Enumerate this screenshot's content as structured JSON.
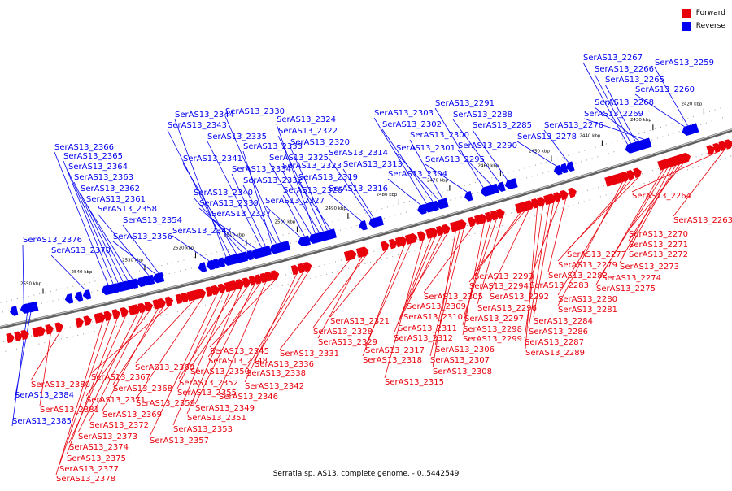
{
  "legend": {
    "forward_label": "Forward",
    "reverse_label": "Reverse"
  },
  "colors": {
    "forward": "#e8000b",
    "reverse": "#0000f0",
    "backbone": "#606060"
  },
  "caption": "Serratia sp. AS13, complete genome. - 0..5442549",
  "ticks": [
    "2420 kbp",
    "2430 kbp",
    "2440 kbp",
    "2450 kbp",
    "2460 kbp",
    "2470 kbp",
    "2480 kbp",
    "2490 kbp",
    "2500 kbp",
    "2510 kbp",
    "2520 kbp",
    "2530 kbp",
    "2540 kbp",
    "2550 kbp"
  ],
  "reverse_genes": [
    "SerAS13_2259",
    "SerAS13_2260",
    "SerAS13_2265",
    "SerAS13_2266",
    "SerAS13_2267",
    "SerAS13_2268",
    "SerAS13_2269",
    "SerAS13_2276",
    "SerAS13_2278",
    "SerAS13_2285",
    "SerAS13_2288",
    "SerAS13_2290",
    "SerAS13_2291",
    "SerAS13_2295",
    "SerAS13_2300",
    "SerAS13_2301",
    "SerAS13_2302",
    "SerAS13_2303",
    "SerAS13_2304",
    "SerAS13_2313",
    "SerAS13_2314",
    "SerAS13_2316",
    "SerAS13_2319",
    "SerAS13_2320",
    "SerAS13_2322",
    "SerAS13_2323",
    "SerAS13_2324",
    "SerAS13_2325",
    "SerAS13_2326",
    "SerAS13_2327",
    "SerAS13_2330",
    "SerAS13_2332",
    "SerAS13_2333",
    "SerAS13_2334",
    "SerAS13_2335",
    "SerAS13_2337",
    "SerAS13_2339",
    "SerAS13_2340",
    "SerAS13_2341",
    "SerAS13_2343",
    "SerAS13_2344",
    "SerAS13_2347",
    "SerAS13_2354",
    "SerAS13_2356",
    "SerAS13_2358",
    "SerAS13_2361",
    "SerAS13_2362",
    "SerAS13_2363",
    "SerAS13_2364",
    "SerAS13_2365",
    "SerAS13_2366",
    "SerAS13_2370",
    "SerAS13_2376",
    "SerAS13_2384",
    "SerAS13_2385"
  ],
  "forward_genes": [
    "SerAS13_2263",
    "SerAS13_2264",
    "SerAS13_2270",
    "SerAS13_2271",
    "SerAS13_2272",
    "SerAS13_2273",
    "SerAS13_2274",
    "SerAS13_2275",
    "SerAS13_2277",
    "SerAS13_2279",
    "SerAS13_2280",
    "SerAS13_2281",
    "SerAS13_2282",
    "SerAS13_2283",
    "SerAS13_2284",
    "SerAS13_2286",
    "SerAS13_2287",
    "SerAS13_2289",
    "SerAS13_2292",
    "SerAS13_2293",
    "SerAS13_2294",
    "SerAS13_2296",
    "SerAS13_2297",
    "SerAS13_2298",
    "SerAS13_2299",
    "SerAS13_2305",
    "SerAS13_2306",
    "SerAS13_2307",
    "SerAS13_2308",
    "SerAS13_2309",
    "SerAS13_2310",
    "SerAS13_2311",
    "SerAS13_2312",
    "SerAS13_2315",
    "SerAS13_2317",
    "SerAS13_2318",
    "SerAS13_2321",
    "SerAS13_2328",
    "SerAS13_2329",
    "SerAS13_2331",
    "SerAS13_2336",
    "SerAS13_2338",
    "SerAS13_2342",
    "SerAS13_2345",
    "SerAS13_2346",
    "SerAS13_2348",
    "SerAS13_2349",
    "SerAS13_2350",
    "SerAS13_2351",
    "SerAS13_2352",
    "SerAS13_2353",
    "SerAS13_2355",
    "SerAS13_2357",
    "SerAS13_2359",
    "SerAS13_2360",
    "SerAS13_2367",
    "SerAS13_2368",
    "SerAS13_2369",
    "SerAS13_2371",
    "SerAS13_2372",
    "SerAS13_2373",
    "SerAS13_2374",
    "SerAS13_2375",
    "SerAS13_2377",
    "SerAS13_2378",
    "SerAS13_2380",
    "SerAS13_2381"
  ]
}
